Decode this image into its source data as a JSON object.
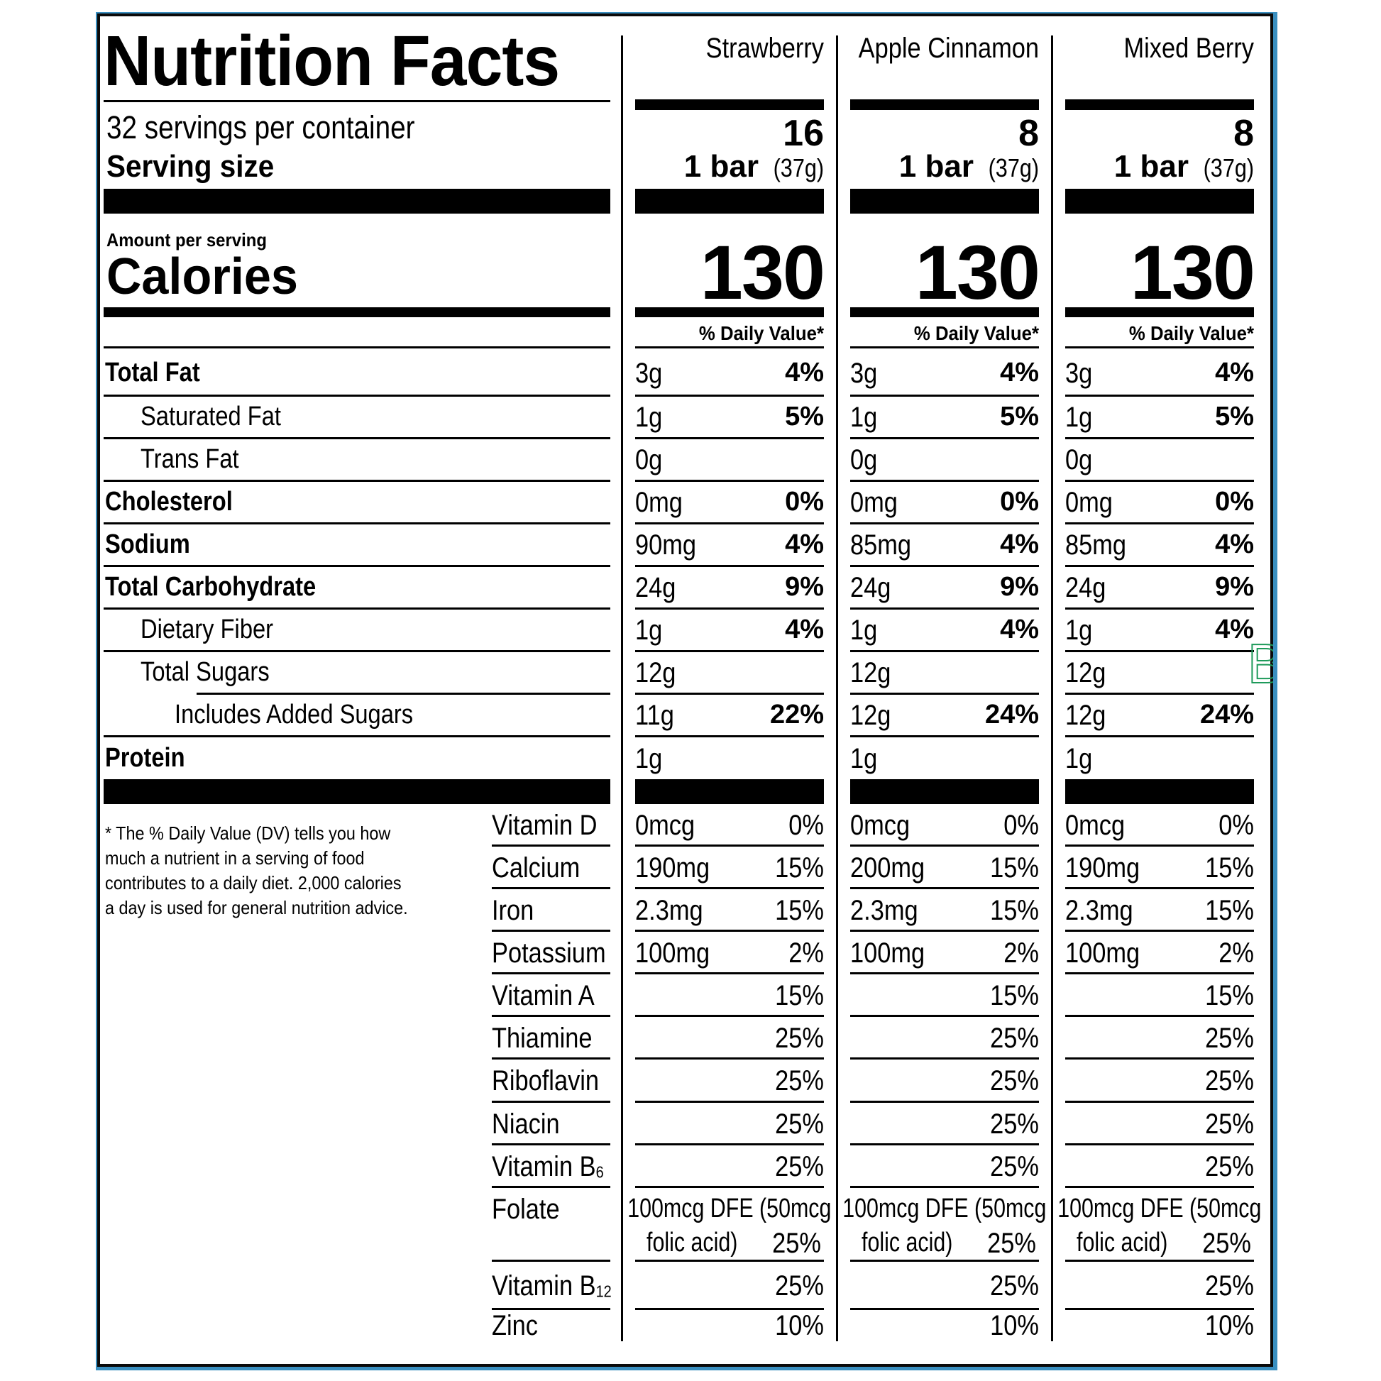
{
  "label": {
    "title": "Nutrition Facts",
    "servings_per_container": "32 servings per container",
    "serving_size_label": "Serving size",
    "amount_per_serving": "Amount per serving",
    "calories_label": "Calories",
    "daily_value_header": "% Daily Value*",
    "footnote": "* The % Daily Value (DV) tells you how much a nutrient in a serving of food contributes to a daily diet. 2,000 calories a day is used for general nutrition advice.",
    "frame_color": "#3a8fc0",
    "artifact_glyph": "B",
    "artifact_color": "#1e9a5a"
  },
  "nutrients": [
    {
      "key": "total_fat",
      "label": "Total Fat",
      "bold": true,
      "indent": 0
    },
    {
      "key": "saturated_fat",
      "label": "Saturated Fat",
      "bold": false,
      "indent": 1
    },
    {
      "key": "trans_fat",
      "label": "Trans Fat",
      "bold": false,
      "indent": 1
    },
    {
      "key": "cholesterol",
      "label": "Cholesterol",
      "bold": true,
      "indent": 0
    },
    {
      "key": "sodium",
      "label": "Sodium",
      "bold": true,
      "indent": 0
    },
    {
      "key": "total_carbohydrate",
      "label": "Total Carbohydrate",
      "bold": true,
      "indent": 0
    },
    {
      "key": "dietary_fiber",
      "label": "Dietary Fiber",
      "bold": false,
      "indent": 1
    },
    {
      "key": "total_sugars",
      "label": "Total Sugars",
      "bold": false,
      "indent": 1
    },
    {
      "key": "added_sugars",
      "label": "Includes Added Sugars",
      "bold": false,
      "indent": 2
    },
    {
      "key": "protein",
      "label": "Protein",
      "bold": true,
      "indent": 0
    }
  ],
  "vitamins": [
    {
      "key": "vitamin_d",
      "label": "Vitamin D",
      "sub": ""
    },
    {
      "key": "calcium",
      "label": "Calcium",
      "sub": ""
    },
    {
      "key": "iron",
      "label": "Iron",
      "sub": ""
    },
    {
      "key": "potassium",
      "label": "Potassium",
      "sub": ""
    },
    {
      "key": "vitamin_a",
      "label": "Vitamin A",
      "sub": ""
    },
    {
      "key": "thiamine",
      "label": "Thiamine",
      "sub": ""
    },
    {
      "key": "riboflavin",
      "label": "Riboflavin",
      "sub": ""
    },
    {
      "key": "niacin",
      "label": "Niacin",
      "sub": ""
    },
    {
      "key": "vitamin_b6",
      "label": "Vitamin B",
      "sub": "6"
    },
    {
      "key": "folate",
      "label": "Folate",
      "sub": ""
    },
    {
      "key": "vitamin_b12",
      "label": "Vitamin B",
      "sub": "12"
    },
    {
      "key": "zinc",
      "label": "Zinc",
      "sub": ""
    }
  ],
  "products": [
    {
      "name": "Strawberry",
      "servings": "16",
      "serving_size_bold": "1 bar",
      "serving_size_grams": "(37g)",
      "calories": "130",
      "nutrients": {
        "total_fat": {
          "amount": "3g",
          "dv": "4%"
        },
        "saturated_fat": {
          "amount": "1g",
          "dv": "5%"
        },
        "trans_fat": {
          "amount": "0g",
          "dv": ""
        },
        "cholesterol": {
          "amount": "0mg",
          "dv": "0%"
        },
        "sodium": {
          "amount": "90mg",
          "dv": "4%"
        },
        "total_carbohydrate": {
          "amount": "24g",
          "dv": "9%"
        },
        "dietary_fiber": {
          "amount": "1g",
          "dv": "4%"
        },
        "total_sugars": {
          "amount": "12g",
          "dv": ""
        },
        "added_sugars": {
          "amount": "11g",
          "dv": "22%"
        },
        "protein": {
          "amount": "1g",
          "dv": ""
        }
      },
      "vitamins": {
        "vitamin_d": {
          "amount": "0mcg",
          "dv": "0%"
        },
        "calcium": {
          "amount": "190mg",
          "dv": "15%"
        },
        "iron": {
          "amount": "2.3mg",
          "dv": "15%"
        },
        "potassium": {
          "amount": "100mg",
          "dv": "2%"
        },
        "vitamin_a": {
          "amount": "",
          "dv": "15%"
        },
        "thiamine": {
          "amount": "",
          "dv": "25%"
        },
        "riboflavin": {
          "amount": "",
          "dv": "25%"
        },
        "niacin": {
          "amount": "",
          "dv": "25%"
        },
        "vitamin_b6": {
          "amount": "",
          "dv": "25%"
        },
        "folate": {
          "amount_line1": "100mcg DFE (50mcg",
          "amount_line2": "folic acid)",
          "dv": "25%"
        },
        "vitamin_b12": {
          "amount": "",
          "dv": "25%"
        },
        "zinc": {
          "amount": "",
          "dv": "10%"
        }
      }
    },
    {
      "name": "Apple Cinnamon",
      "servings": "8",
      "serving_size_bold": "1 bar",
      "serving_size_grams": "(37g)",
      "calories": "130",
      "nutrients": {
        "total_fat": {
          "amount": "3g",
          "dv": "4%"
        },
        "saturated_fat": {
          "amount": "1g",
          "dv": "5%"
        },
        "trans_fat": {
          "amount": "0g",
          "dv": ""
        },
        "cholesterol": {
          "amount": "0mg",
          "dv": "0%"
        },
        "sodium": {
          "amount": "85mg",
          "dv": "4%"
        },
        "total_carbohydrate": {
          "amount": "24g",
          "dv": "9%"
        },
        "dietary_fiber": {
          "amount": "1g",
          "dv": "4%"
        },
        "total_sugars": {
          "amount": "12g",
          "dv": ""
        },
        "added_sugars": {
          "amount": "12g",
          "dv": "24%"
        },
        "protein": {
          "amount": "1g",
          "dv": ""
        }
      },
      "vitamins": {
        "vitamin_d": {
          "amount": "0mcg",
          "dv": "0%"
        },
        "calcium": {
          "amount": "200mg",
          "dv": "15%"
        },
        "iron": {
          "amount": "2.3mg",
          "dv": "15%"
        },
        "potassium": {
          "amount": "100mg",
          "dv": "2%"
        },
        "vitamin_a": {
          "amount": "",
          "dv": "15%"
        },
        "thiamine": {
          "amount": "",
          "dv": "25%"
        },
        "riboflavin": {
          "amount": "",
          "dv": "25%"
        },
        "niacin": {
          "amount": "",
          "dv": "25%"
        },
        "vitamin_b6": {
          "amount": "",
          "dv": "25%"
        },
        "folate": {
          "amount_line1": "100mcg DFE (50mcg",
          "amount_line2": "folic acid)",
          "dv": "25%"
        },
        "vitamin_b12": {
          "amount": "",
          "dv": "25%"
        },
        "zinc": {
          "amount": "",
          "dv": "10%"
        }
      }
    },
    {
      "name": "Mixed Berry",
      "servings": "8",
      "serving_size_bold": "1 bar",
      "serving_size_grams": "(37g)",
      "calories": "130",
      "nutrients": {
        "total_fat": {
          "amount": "3g",
          "dv": "4%"
        },
        "saturated_fat": {
          "amount": "1g",
          "dv": "5%"
        },
        "trans_fat": {
          "amount": "0g",
          "dv": ""
        },
        "cholesterol": {
          "amount": "0mg",
          "dv": "0%"
        },
        "sodium": {
          "amount": "85mg",
          "dv": "4%"
        },
        "total_carbohydrate": {
          "amount": "24g",
          "dv": "9%"
        },
        "dietary_fiber": {
          "amount": "1g",
          "dv": "4%"
        },
        "total_sugars": {
          "amount": "12g",
          "dv": ""
        },
        "added_sugars": {
          "amount": "12g",
          "dv": "24%"
        },
        "protein": {
          "amount": "1g",
          "dv": ""
        }
      },
      "vitamins": {
        "vitamin_d": {
          "amount": "0mcg",
          "dv": "0%"
        },
        "calcium": {
          "amount": "190mg",
          "dv": "15%"
        },
        "iron": {
          "amount": "2.3mg",
          "dv": "15%"
        },
        "potassium": {
          "amount": "100mg",
          "dv": "2%"
        },
        "vitamin_a": {
          "amount": "",
          "dv": "15%"
        },
        "thiamine": {
          "amount": "",
          "dv": "25%"
        },
        "riboflavin": {
          "amount": "",
          "dv": "25%"
        },
        "niacin": {
          "amount": "",
          "dv": "25%"
        },
        "vitamin_b6": {
          "amount": "",
          "dv": "25%"
        },
        "folate": {
          "amount_line1": "100mcg DFE (50mcg",
          "amount_line2": "folic acid)",
          "dv": "25%"
        },
        "vitamin_b12": {
          "amount": "",
          "dv": "25%"
        },
        "zinc": {
          "amount": "",
          "dv": "10%"
        }
      }
    }
  ]
}
